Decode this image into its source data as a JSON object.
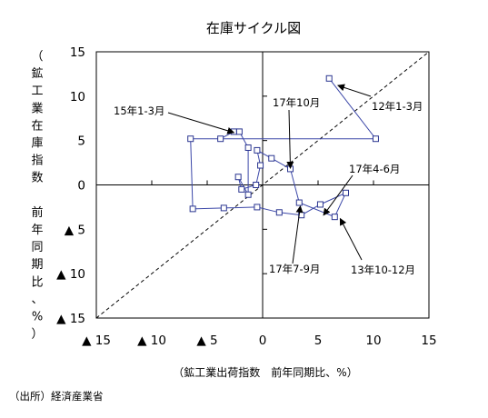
{
  "chart_data": {
    "type": "scatter",
    "title": "在庫サイクル図",
    "xlabel": "（鉱工業出荷指数　前年同期比、%）",
    "ylabel_chars": [
      "（",
      "鉱",
      "工",
      "業",
      "在",
      "庫",
      "指",
      "数",
      " ",
      "前",
      "年",
      "同",
      "期",
      "比",
      "、",
      "%",
      "）"
    ],
    "source": "（出所）経済産業省",
    "xlim": [
      -15,
      15
    ],
    "ylim": [
      -15,
      15
    ],
    "x_ticks": [
      {
        "v": -15,
        "label": "▲ 15"
      },
      {
        "v": -10,
        "label": "▲ 10"
      },
      {
        "v": -5,
        "label": "▲ 5"
      },
      {
        "v": 0,
        "label": "0"
      },
      {
        "v": 5,
        "label": "5"
      },
      {
        "v": 10,
        "label": "10"
      },
      {
        "v": 15,
        "label": "15"
      }
    ],
    "y_ticks": [
      {
        "v": 15,
        "label": "15"
      },
      {
        "v": 10,
        "label": "10"
      },
      {
        "v": 5,
        "label": "5"
      },
      {
        "v": 0,
        "label": "0"
      },
      {
        "v": -5,
        "label": "▲ 5"
      },
      {
        "v": -10,
        "label": "▲ 10"
      },
      {
        "v": -15,
        "label": "▲ 15"
      }
    ],
    "diagonal": true,
    "grid": false,
    "series": [
      {
        "points": [
          [
            6.0,
            12.0
          ],
          [
            10.2,
            5.2
          ],
          [
            -6.5,
            5.2
          ],
          [
            -6.3,
            -2.7
          ],
          [
            -3.5,
            -2.6
          ],
          [
            -0.5,
            -2.5
          ],
          [
            1.5,
            -3.1
          ],
          [
            3.5,
            -3.4
          ],
          [
            5.2,
            -2.2
          ],
          [
            7.5,
            -0.9
          ],
          [
            6.5,
            -3.6
          ],
          [
            3.3,
            -2.0
          ],
          [
            2.5,
            1.8
          ],
          [
            0.8,
            3.0
          ],
          [
            -0.5,
            3.9
          ],
          [
            -0.2,
            2.2
          ],
          [
            -0.6,
            0
          ],
          [
            -1.9,
            -0.5
          ],
          [
            -2.2,
            0.9
          ],
          [
            -1.3,
            -1.1
          ],
          [
            -1.3,
            4.2
          ],
          [
            -2.1,
            6.0
          ],
          [
            -2.6,
            6.0
          ],
          [
            -3.8,
            5.2
          ],
          [
            -6.5,
            5.2
          ],
          [
            -6.3,
            -2.7
          ],
          [
            -3.5,
            -2.6
          ],
          [
            -0.5,
            -2.5
          ],
          [
            1.5,
            -3.1
          ],
          [
            3.5,
            -3.4
          ],
          [
            5.2,
            -2.2
          ]
        ],
        "color": "#3b47a8"
      }
    ],
    "callout_points": [
      [
        6.0,
        12.0
      ],
      [
        10.2,
        5.2
      ],
      [
        -6.5,
        5.2
      ],
      [
        -6.3,
        -2.7
      ],
      [
        -3.5,
        -2.6
      ],
      [
        -0.5,
        -2.5
      ],
      [
        1.5,
        -3.1
      ],
      [
        3.5,
        -3.4
      ],
      [
        5.2,
        -2.2
      ],
      [
        7.5,
        -0.9
      ],
      [
        6.5,
        -3.6
      ],
      [
        3.3,
        -2.0
      ],
      [
        2.5,
        1.8
      ],
      [
        0.8,
        3.0
      ],
      [
        -0.5,
        3.9
      ],
      [
        -0.2,
        2.2
      ],
      [
        -0.6,
        0.0
      ],
      [
        -1.9,
        -0.5
      ],
      [
        -2.2,
        0.9
      ],
      [
        -1.3,
        -1.1
      ],
      [
        -1.3,
        4.2
      ],
      [
        -2.1,
        6.0
      ],
      [
        -2.6,
        6.0
      ],
      [
        -3.8,
        5.2
      ]
    ],
    "annotations": [
      {
        "text": "15年1-3月",
        "point": [
          -2.6,
          5.9
        ]
      },
      {
        "text": "17年10月",
        "point": [
          2.5,
          1.9
        ]
      },
      {
        "text": "12年1-3月",
        "point": [
          6.8,
          11.2
        ]
      },
      {
        "text": "17年4-6月",
        "point": [
          5.5,
          -3.4
        ]
      },
      {
        "text": "17年7-9月",
        "point": [
          3.4,
          -2.4
        ]
      },
      {
        "text": "13年10-12月",
        "point": [
          7.0,
          -3.8
        ]
      }
    ]
  }
}
